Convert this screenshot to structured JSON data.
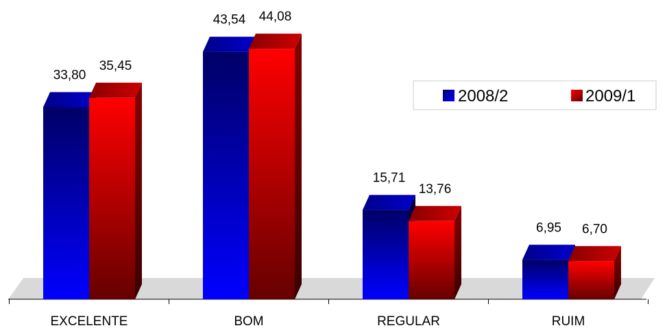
{
  "chart_data": {
    "type": "bar",
    "categories": [
      "EXCELENTE",
      "BOM",
      "REGULAR",
      "RUIM"
    ],
    "series": [
      {
        "name": "2008/2",
        "values": [
          33.8,
          43.54,
          15.71,
          6.95
        ],
        "labels": [
          "33,80",
          "43,54",
          "15,71",
          "6,95"
        ],
        "color": "#0000ff",
        "color_dark": "#000066"
      },
      {
        "name": "2009/1",
        "values": [
          35.45,
          44.08,
          13.76,
          6.7
        ],
        "labels": [
          "35,45",
          "44,08",
          "13,76",
          "6,70"
        ],
        "color": "#ff0000",
        "color_dark": "#660000"
      }
    ],
    "ylim": [
      0,
      50
    ],
    "grid": false,
    "legend": "top-right"
  }
}
